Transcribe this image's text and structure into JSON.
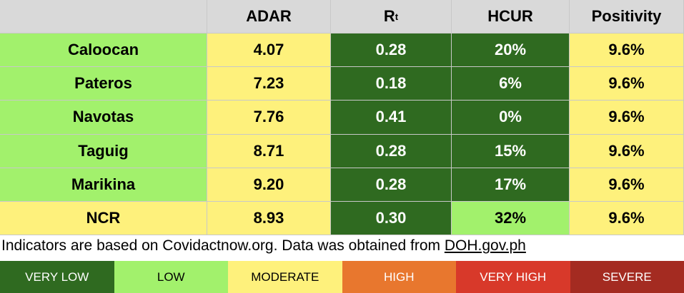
{
  "table": {
    "header": [
      "ADAR",
      {
        "text": "R",
        "subscript": "t"
      },
      "HCUR",
      "Positivity"
    ],
    "header_color": "#d9d9d9",
    "rows": [
      {
        "cells": [
          "Caloocan",
          "4.07",
          "0.28",
          "20%",
          "9.6%"
        ],
        "colors": [
          "#a2f16c",
          "#fef17c",
          "#2f6a20",
          "#2f6a20",
          "#fef17c"
        ]
      },
      {
        "cells": [
          "Pateros",
          "7.23",
          "0.18",
          "6%",
          "9.6%"
        ],
        "colors": [
          "#a2f16c",
          "#fef17c",
          "#2f6a20",
          "#2f6a20",
          "#fef17c"
        ]
      },
      {
        "cells": [
          "Navotas",
          "7.76",
          "0.41",
          "0%",
          "9.6%"
        ],
        "colors": [
          "#a2f16c",
          "#fef17c",
          "#2f6a20",
          "#2f6a20",
          "#fef17c"
        ]
      },
      {
        "cells": [
          "Taguig",
          "8.71",
          "0.28",
          "15%",
          "9.6%"
        ],
        "colors": [
          "#a2f16c",
          "#fef17c",
          "#2f6a20",
          "#2f6a20",
          "#fef17c"
        ]
      },
      {
        "cells": [
          "Marikina",
          "9.20",
          "0.28",
          "17%",
          "9.6%"
        ],
        "colors": [
          "#a2f16c",
          "#fef17c",
          "#2f6a20",
          "#2f6a20",
          "#fef17c"
        ]
      },
      {
        "cells": [
          "NCR",
          "8.93",
          "0.30",
          "32%",
          "9.6%"
        ],
        "colors": [
          "#fef17c",
          "#fef17c",
          "#2f6a20",
          "#a2f16c",
          "#fef17c"
        ]
      }
    ]
  },
  "note": {
    "text": "Indicators are based on Covidactnow.org. Data was obtained from ",
    "link": "DOH.gov.ph"
  },
  "legend": [
    {
      "label": "VERY LOW",
      "color": "#2f6a20"
    },
    {
      "label": "LOW",
      "color": "#a2f16c"
    },
    {
      "label": "MODERATE",
      "color": "#fef17c"
    },
    {
      "label": "HIGH",
      "color": "#e8772e"
    },
    {
      "label": "VERY HIGH",
      "color": "#d8392a"
    },
    {
      "label": "SEVERE",
      "color": "#a42b21"
    }
  ]
}
